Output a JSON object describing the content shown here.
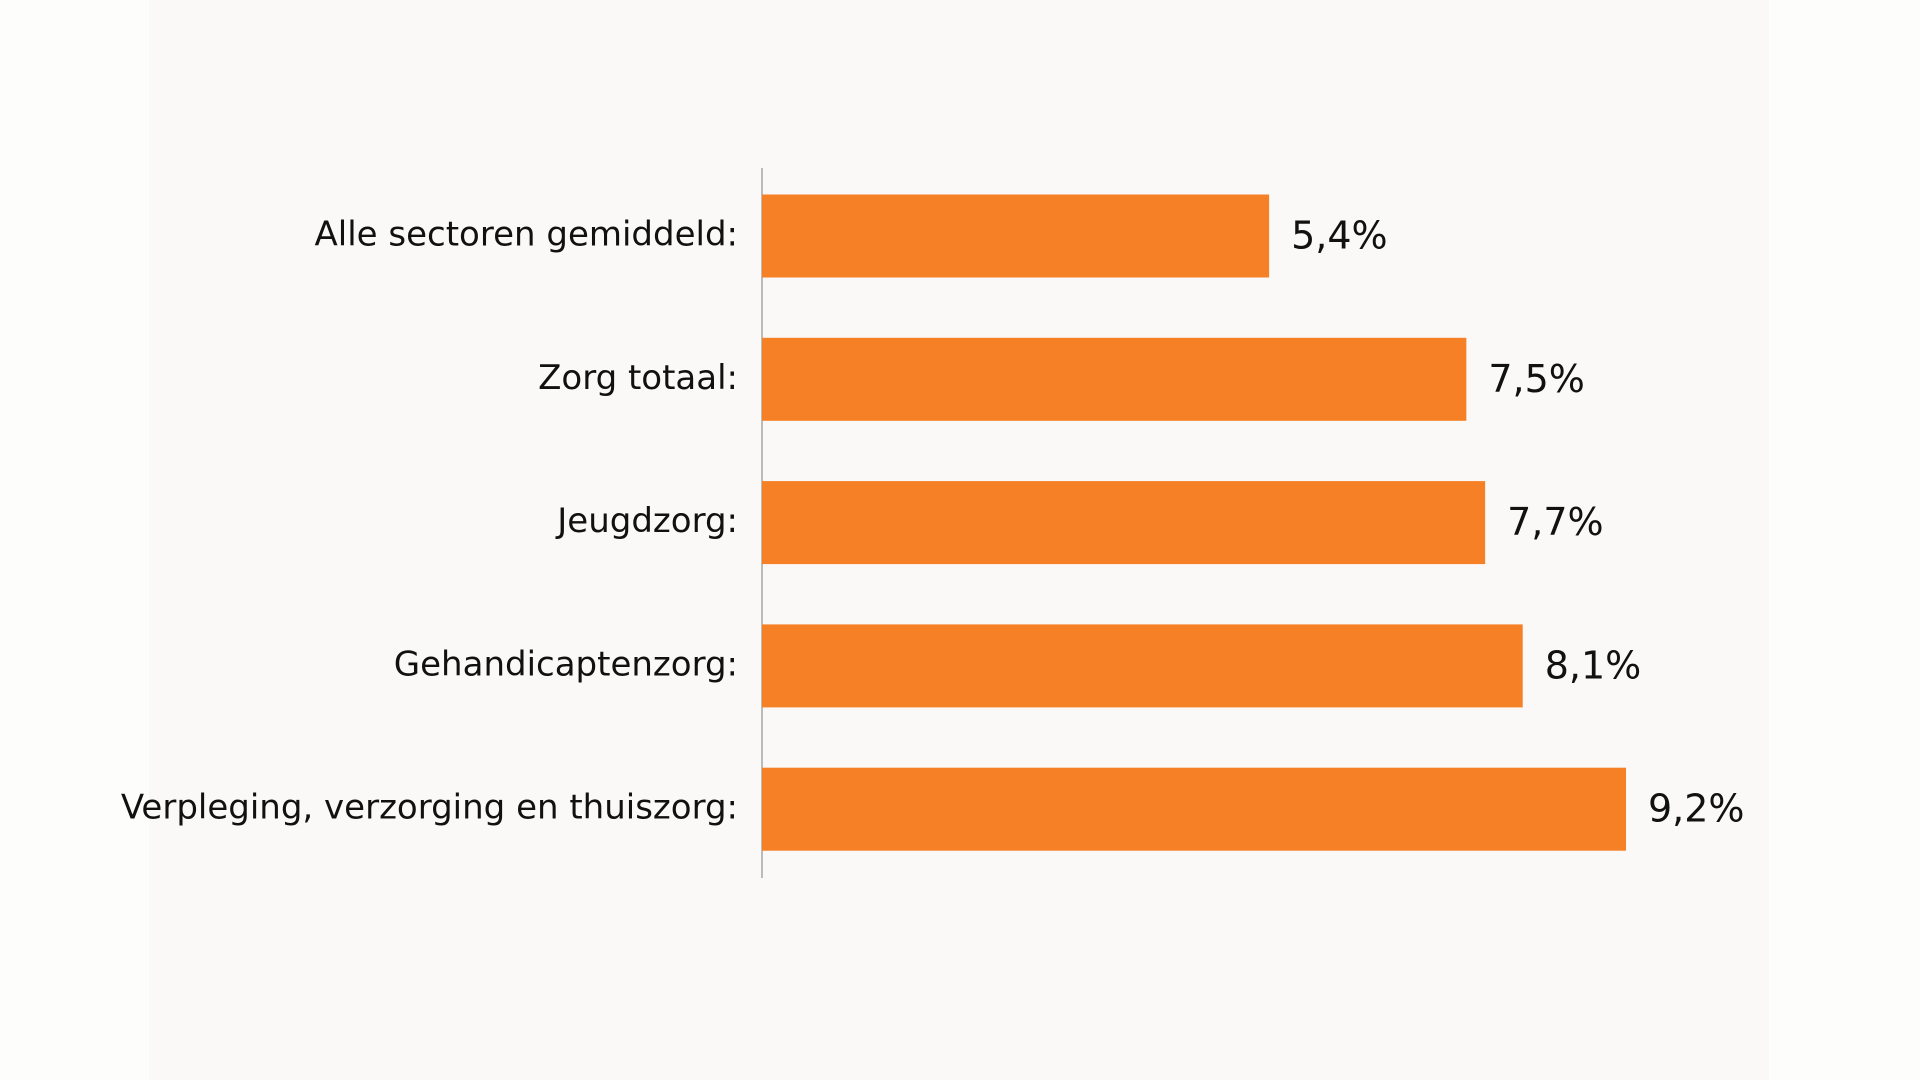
{
  "chart_data": {
    "type": "bar",
    "orientation": "horizontal",
    "categories": [
      "Alle sectoren gemiddeld:",
      "Zorg totaal:",
      "Jeugdzorg:",
      "Gehandicaptenzorg:",
      "Verpleging, verzorging en thuiszorg:"
    ],
    "values": [
      5.4,
      7.5,
      7.7,
      8.1,
      9.2
    ],
    "value_labels": [
      "5,4%",
      "7,5%",
      "7,7%",
      "8,1%",
      "9,2%"
    ],
    "color": "#f58025"
  }
}
